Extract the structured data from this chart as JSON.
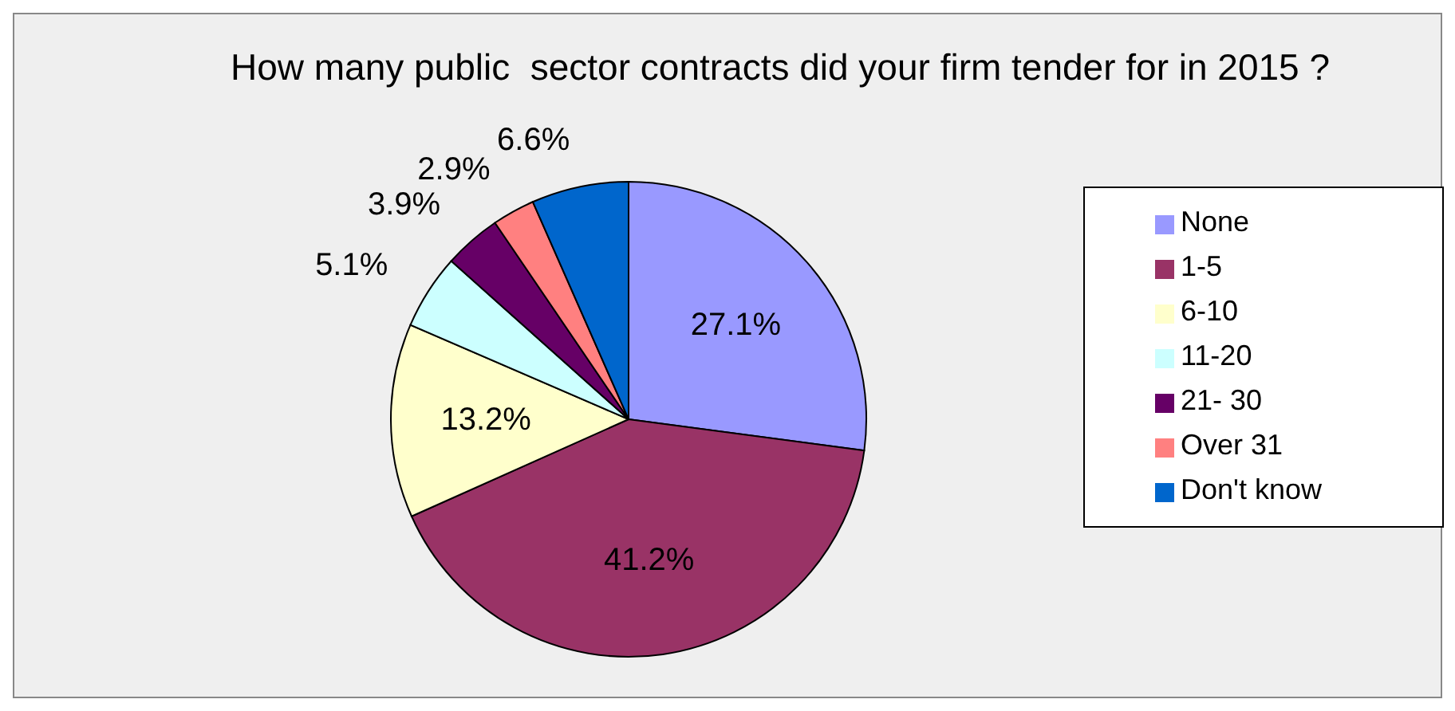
{
  "chart_data": {
    "type": "pie",
    "title": "How many public  sector contracts did your firm tender for in 2015 ?",
    "categories": [
      "None",
      "1-5",
      "6-10",
      "11-20",
      "21- 30",
      "Over 31",
      "Don't know"
    ],
    "values": [
      27.1,
      41.2,
      13.2,
      5.1,
      3.9,
      2.9,
      6.6
    ],
    "value_labels": [
      "27.1%",
      "41.2%",
      "13.2%",
      "5.1%",
      "3.9%",
      "2.9%",
      "6.6%"
    ],
    "colors": [
      "#9999ff",
      "#993366",
      "#ffffcc",
      "#ccffff",
      "#660066",
      "#ff8080",
      "#0066cc"
    ],
    "legend": "right"
  }
}
